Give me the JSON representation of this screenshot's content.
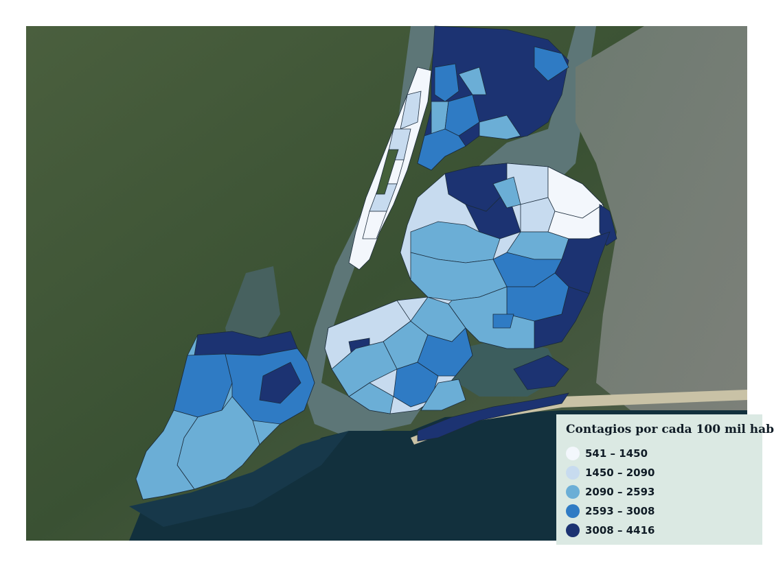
{
  "legend": {
    "title": "Contagios por cada 100 mil hab",
    "items": [
      {
        "label": "541 – 1450",
        "color": "#f3f7fc"
      },
      {
        "label": "1450 – 2090",
        "color": "#c7dbef"
      },
      {
        "label": "2090 – 2593",
        "color": "#6baed6"
      },
      {
        "label": "2593 – 3008",
        "color": "#2f7bc4"
      },
      {
        "label": "3008 – 4416",
        "color": "#1c3372"
      }
    ]
  },
  "colors": {
    "land_green": "#3c5535",
    "water": "#1f3f52",
    "ocean_dark": "#12303d",
    "long_island": "#6f7672",
    "legend_bg": "#dbe9e3"
  }
}
